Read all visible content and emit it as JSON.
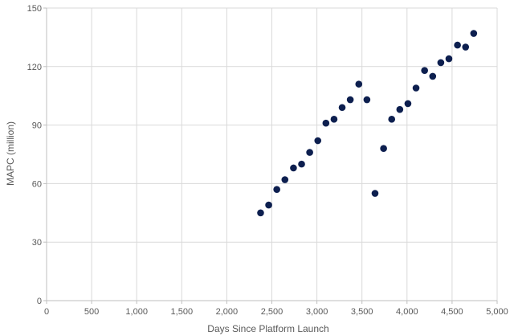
{
  "chart_data": {
    "type": "scatter",
    "title": "",
    "xlabel": "Days Since Platform Launch",
    "ylabel": "MAPC (million)",
    "xlim": [
      0,
      5000
    ],
    "ylim": [
      0,
      150
    ],
    "x_ticks": [
      0,
      500,
      1000,
      1500,
      2000,
      2500,
      3000,
      3500,
      4000,
      4500,
      5000
    ],
    "x_tick_labels": [
      "0",
      "500",
      "1,000",
      "1,500",
      "2,000",
      "2,500",
      "3,000",
      "3,500",
      "4,000",
      "4,500",
      "5,000"
    ],
    "y_ticks": [
      0,
      30,
      60,
      90,
      120,
      150
    ],
    "y_tick_labels": [
      "0",
      "30",
      "60",
      "90",
      "120",
      "150"
    ],
    "grid": true,
    "legend": "none",
    "marker_color": "#0d1f4f",
    "grid_color": "#d9d9d9",
    "axis_color": "#bfbfbf",
    "points": [
      {
        "x": 2375,
        "y": 45
      },
      {
        "x": 2465,
        "y": 49
      },
      {
        "x": 2555,
        "y": 57
      },
      {
        "x": 2645,
        "y": 62
      },
      {
        "x": 2740,
        "y": 68
      },
      {
        "x": 2830,
        "y": 70
      },
      {
        "x": 2920,
        "y": 76
      },
      {
        "x": 3010,
        "y": 82
      },
      {
        "x": 3100,
        "y": 91
      },
      {
        "x": 3190,
        "y": 93
      },
      {
        "x": 3280,
        "y": 99
      },
      {
        "x": 3370,
        "y": 103
      },
      {
        "x": 3465,
        "y": 111
      },
      {
        "x": 3555,
        "y": 103
      },
      {
        "x": 3645,
        "y": 55
      },
      {
        "x": 3740,
        "y": 78
      },
      {
        "x": 3830,
        "y": 93
      },
      {
        "x": 3920,
        "y": 98
      },
      {
        "x": 4010,
        "y": 101
      },
      {
        "x": 4100,
        "y": 109
      },
      {
        "x": 4195,
        "y": 118
      },
      {
        "x": 4285,
        "y": 115
      },
      {
        "x": 4375,
        "y": 122
      },
      {
        "x": 4465,
        "y": 124
      },
      {
        "x": 4560,
        "y": 131
      },
      {
        "x": 4650,
        "y": 130
      },
      {
        "x": 4740,
        "y": 137
      }
    ]
  }
}
